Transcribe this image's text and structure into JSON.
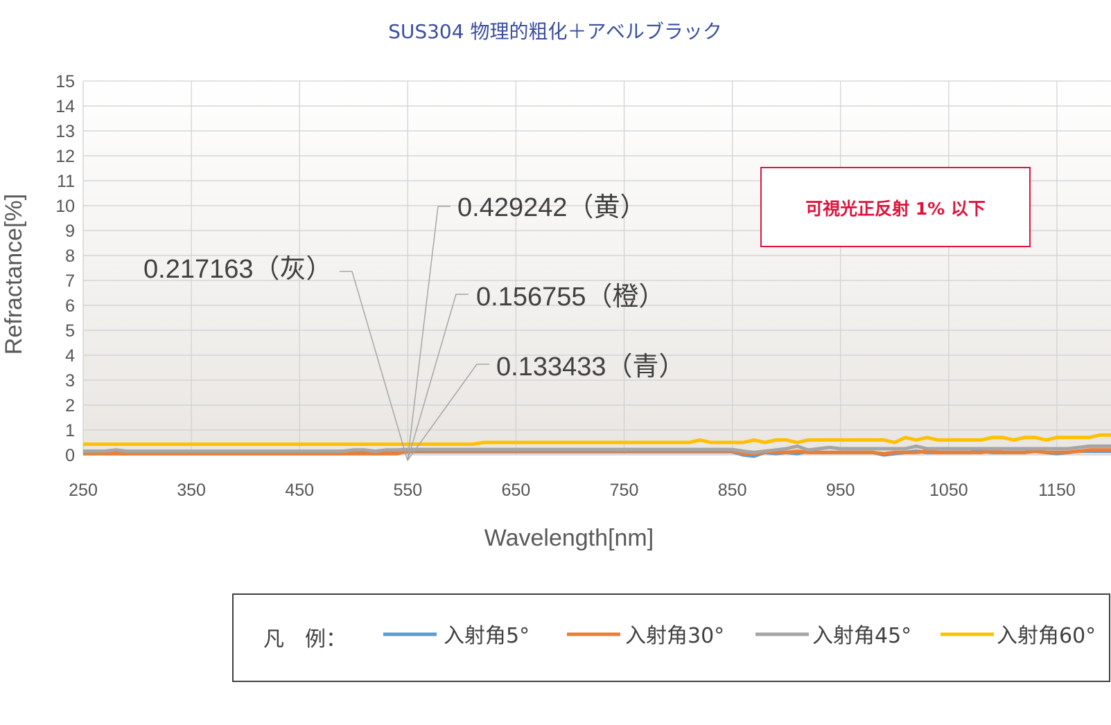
{
  "chart_data": {
    "type": "line",
    "title": "SUS304 物理的粗化＋アベルブラック",
    "xlabel": "Wavelength[nm]",
    "ylabel": "Refractance[%]",
    "xlim": [
      250,
      1200
    ],
    "ylim": [
      0,
      15
    ],
    "xticks": [
      "250",
      "350",
      "450",
      "550",
      "650",
      "750",
      "850",
      "950",
      "1050",
      "1150"
    ],
    "yticks": [
      "0",
      "1",
      "2",
      "3",
      "4",
      "5",
      "6",
      "7",
      "8",
      "9",
      "10",
      "11",
      "12",
      "13",
      "14",
      "15"
    ],
    "grid": true,
    "x": [
      250,
      260,
      270,
      280,
      290,
      300,
      310,
      320,
      330,
      340,
      350,
      360,
      370,
      380,
      390,
      400,
      410,
      420,
      430,
      440,
      450,
      460,
      470,
      480,
      490,
      500,
      510,
      520,
      530,
      540,
      550,
      560,
      570,
      580,
      590,
      600,
      610,
      620,
      630,
      640,
      650,
      660,
      670,
      680,
      690,
      700,
      710,
      720,
      730,
      740,
      750,
      760,
      770,
      780,
      790,
      800,
      810,
      820,
      830,
      840,
      850,
      860,
      870,
      880,
      890,
      900,
      910,
      920,
      930,
      940,
      950,
      960,
      970,
      980,
      990,
      1000,
      1010,
      1020,
      1030,
      1040,
      1050,
      1060,
      1070,
      1080,
      1090,
      1100,
      1110,
      1120,
      1130,
      1140,
      1150,
      1160,
      1170,
      1180,
      1190,
      1200
    ],
    "series": [
      {
        "name": "入射角5°",
        "color": "#5b9bd5",
        "values": [
          0.08,
          0.08,
          0.08,
          0.08,
          0.08,
          0.08,
          0.08,
          0.08,
          0.08,
          0.08,
          0.08,
          0.08,
          0.08,
          0.08,
          0.08,
          0.08,
          0.08,
          0.08,
          0.08,
          0.08,
          0.08,
          0.08,
          0.08,
          0.08,
          0.08,
          0.08,
          0.08,
          0.08,
          0.08,
          0.08,
          0.13,
          0.13,
          0.13,
          0.13,
          0.13,
          0.13,
          0.13,
          0.13,
          0.13,
          0.13,
          0.13,
          0.13,
          0.13,
          0.13,
          0.13,
          0.13,
          0.13,
          0.13,
          0.13,
          0.13,
          0.13,
          0.13,
          0.13,
          0.13,
          0.13,
          0.13,
          0.13,
          0.13,
          0.13,
          0.13,
          0.13,
          0.0,
          -0.05,
          0.1,
          0.05,
          0.1,
          0.05,
          0.15,
          0.1,
          0.1,
          0.1,
          0.1,
          0.1,
          0.1,
          0.0,
          0.05,
          0.1,
          0.15,
          0.1,
          0.1,
          0.1,
          0.1,
          0.1,
          0.15,
          0.1,
          0.1,
          0.1,
          0.1,
          0.15,
          0.1,
          0.05,
          0.1,
          0.15,
          0.15,
          0.15,
          0.15
        ]
      },
      {
        "name": "入射角30°",
        "color": "#ed7d31",
        "values": [
          0.05,
          0.05,
          0.05,
          0.05,
          0.05,
          0.05,
          0.05,
          0.05,
          0.05,
          0.05,
          0.05,
          0.05,
          0.05,
          0.05,
          0.05,
          0.05,
          0.05,
          0.05,
          0.05,
          0.05,
          0.05,
          0.05,
          0.05,
          0.05,
          0.05,
          0.05,
          0.05,
          0.05,
          0.05,
          0.05,
          0.16,
          0.16,
          0.16,
          0.16,
          0.16,
          0.16,
          0.16,
          0.16,
          0.16,
          0.16,
          0.16,
          0.16,
          0.16,
          0.16,
          0.16,
          0.16,
          0.16,
          0.16,
          0.16,
          0.16,
          0.16,
          0.16,
          0.16,
          0.16,
          0.16,
          0.16,
          0.16,
          0.16,
          0.16,
          0.16,
          0.16,
          0.05,
          0.05,
          0.1,
          0.1,
          0.1,
          0.15,
          0.1,
          0.1,
          0.1,
          0.1,
          0.1,
          0.1,
          0.1,
          0.05,
          0.1,
          0.1,
          0.1,
          0.15,
          0.1,
          0.1,
          0.1,
          0.1,
          0.1,
          0.15,
          0.1,
          0.1,
          0.1,
          0.15,
          0.1,
          0.1,
          0.1,
          0.15,
          0.2,
          0.2,
          0.2
        ]
      },
      {
        "name": "入射角45°",
        "color": "#a5a5a5",
        "values": [
          0.15,
          0.15,
          0.15,
          0.2,
          0.15,
          0.15,
          0.15,
          0.15,
          0.15,
          0.15,
          0.15,
          0.15,
          0.15,
          0.15,
          0.15,
          0.15,
          0.15,
          0.15,
          0.15,
          0.15,
          0.15,
          0.15,
          0.15,
          0.15,
          0.15,
          0.2,
          0.2,
          0.15,
          0.2,
          0.2,
          0.22,
          0.22,
          0.22,
          0.22,
          0.22,
          0.22,
          0.22,
          0.22,
          0.22,
          0.22,
          0.22,
          0.22,
          0.22,
          0.22,
          0.22,
          0.22,
          0.22,
          0.22,
          0.22,
          0.22,
          0.22,
          0.22,
          0.22,
          0.22,
          0.22,
          0.22,
          0.22,
          0.22,
          0.22,
          0.22,
          0.22,
          0.15,
          0.1,
          0.15,
          0.2,
          0.25,
          0.35,
          0.2,
          0.25,
          0.3,
          0.25,
          0.25,
          0.25,
          0.25,
          0.25,
          0.25,
          0.25,
          0.35,
          0.25,
          0.25,
          0.25,
          0.25,
          0.25,
          0.25,
          0.25,
          0.25,
          0.25,
          0.25,
          0.25,
          0.25,
          0.25,
          0.25,
          0.3,
          0.35,
          0.35,
          0.35
        ]
      },
      {
        "name": "入射角60°",
        "color": "#ffc000",
        "values": [
          0.43,
          0.43,
          0.43,
          0.43,
          0.43,
          0.43,
          0.43,
          0.43,
          0.43,
          0.43,
          0.43,
          0.43,
          0.43,
          0.43,
          0.43,
          0.43,
          0.43,
          0.43,
          0.43,
          0.43,
          0.43,
          0.43,
          0.43,
          0.43,
          0.43,
          0.43,
          0.43,
          0.43,
          0.43,
          0.43,
          0.43,
          0.43,
          0.43,
          0.43,
          0.43,
          0.43,
          0.43,
          0.5,
          0.5,
          0.5,
          0.5,
          0.5,
          0.5,
          0.5,
          0.5,
          0.5,
          0.5,
          0.5,
          0.5,
          0.5,
          0.5,
          0.5,
          0.5,
          0.5,
          0.5,
          0.5,
          0.5,
          0.6,
          0.5,
          0.5,
          0.5,
          0.5,
          0.6,
          0.5,
          0.6,
          0.6,
          0.5,
          0.6,
          0.6,
          0.6,
          0.6,
          0.6,
          0.6,
          0.6,
          0.6,
          0.5,
          0.7,
          0.6,
          0.7,
          0.6,
          0.6,
          0.6,
          0.6,
          0.6,
          0.7,
          0.7,
          0.6,
          0.7,
          0.7,
          0.6,
          0.7,
          0.7,
          0.7,
          0.7,
          0.8,
          0.8
        ]
      }
    ],
    "annotations": [
      {
        "text": "0.429242（黄）",
        "x": 550,
        "y": 0.429242
      },
      {
        "text": "0.217163（灰）",
        "x": 550,
        "y": 0.217163
      },
      {
        "text": "0.156755（橙）",
        "x": 550,
        "y": 0.156755
      },
      {
        "text": "0.133433（青）",
        "x": 550,
        "y": 0.133433
      }
    ],
    "note": "可視光正反射 1% 以下",
    "legend": {
      "heading": "凡　例：",
      "placement": "bottom",
      "items": [
        "入射角5°",
        "入射角30°",
        "入射角45°",
        "入射角60°"
      ]
    }
  }
}
